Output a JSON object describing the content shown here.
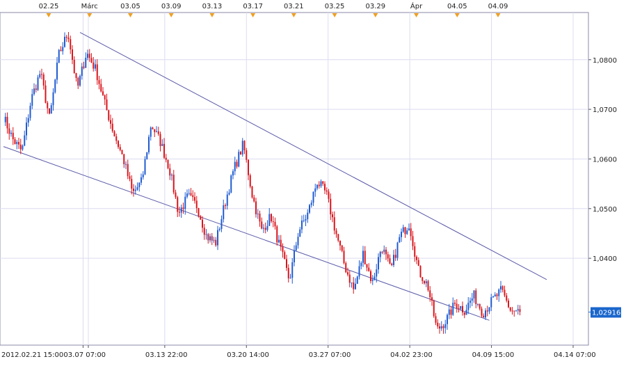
{
  "chart_data": {
    "type": "candlestick",
    "title": "",
    "xlabel": "",
    "ylabel": "",
    "ylim": [
      1.0225,
      1.0895
    ],
    "y_ticks": [
      "1,0800",
      "1,0700",
      "1,0600",
      "1,0500",
      "1,0400"
    ],
    "y_tick_values": [
      1.08,
      1.07,
      1.06,
      1.05,
      1.04
    ],
    "current_price": 1.02916,
    "current_price_label": "1,02916",
    "x_bottom_labels": [
      "2012.02.21 15:00",
      "03.07 07:00",
      "03.13 22:00",
      "03.20 14:00",
      "03.27 07:00",
      "04.02 23:00",
      "04.09 15:00",
      "04.14 07:00"
    ],
    "x_top_labels": [
      "02.25",
      "Márc",
      "03.05",
      "03.09",
      "03.13",
      "03.17",
      "03.21",
      "03.25",
      "03.29",
      "Ápr",
      "04.05",
      "04.09"
    ],
    "colors": {
      "up": "#1f5bd0",
      "down": "#d9141b",
      "channel": "#5a5aa8",
      "grid": "#dcdcf0",
      "marker": "#f0a020",
      "price_box": "#1a66cc"
    },
    "channel_lines": [
      {
        "name": "upper",
        "points": [
          {
            "bar": 40,
            "price": 1.0855
          },
          {
            "bar": 284,
            "price": 1.0357
          }
        ]
      },
      {
        "name": "lower",
        "points": [
          {
            "bar": 0,
            "price": 1.0625
          },
          {
            "bar": 254,
            "price": 1.0275
          }
        ]
      }
    ],
    "key_prices": [
      1.0685,
      1.064,
      1.0615,
      1.072,
      1.0775,
      1.068,
      1.081,
      1.0855,
      1.074,
      1.0815,
      1.078,
      1.071,
      1.065,
      1.06,
      1.053,
      1.0555,
      1.067,
      1.0635,
      1.058,
      1.049,
      1.0525,
      1.0505,
      1.0445,
      1.043,
      1.051,
      1.058,
      1.063,
      1.0525,
      1.0455,
      1.0485,
      1.042,
      1.0355,
      1.0455,
      1.049,
      1.0555,
      1.053,
      1.0455,
      1.0385,
      1.0335,
      1.041,
      1.035,
      1.0425,
      1.0375,
      1.0445,
      1.047,
      1.0375,
      1.0345,
      1.0255,
      1.0275,
      1.031,
      1.0295,
      1.0325,
      1.029,
      1.0315,
      1.0335,
      1.0295,
      1.0292
    ]
  }
}
